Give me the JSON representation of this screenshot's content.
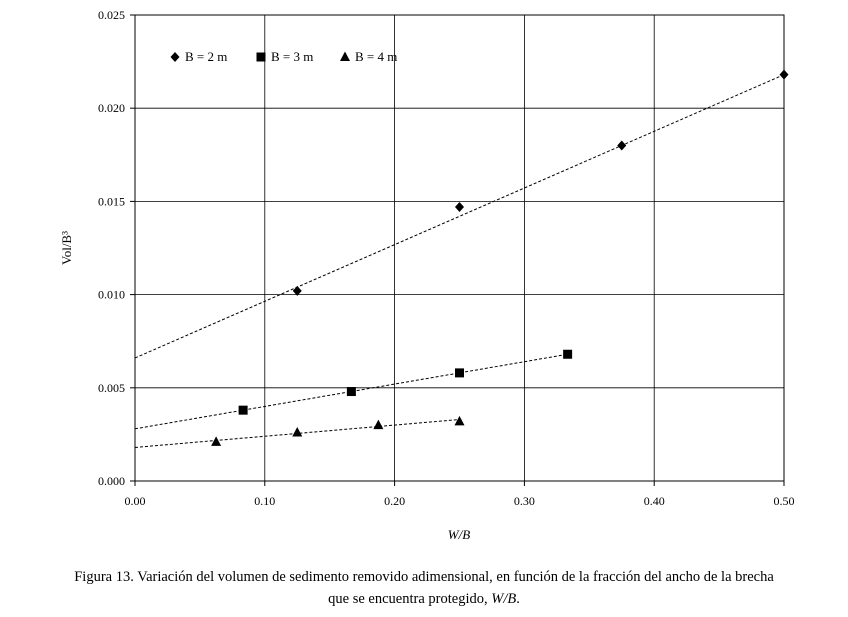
{
  "chart_data": {
    "type": "scatter",
    "xlabel": "W/B",
    "ylabel": "Vol/B³",
    "xlim": [
      0,
      0.5
    ],
    "ylim": [
      0,
      0.025
    ],
    "x_ticks": [
      "0.00",
      "0.10",
      "0.20",
      "0.30",
      "0.40",
      "0.50"
    ],
    "y_ticks": [
      "0.000",
      "0.005",
      "0.010",
      "0.015",
      "0.020",
      "0.025"
    ],
    "grid": true,
    "legend_position": "top-left",
    "series": [
      {
        "name": "B = 2 m",
        "marker": "diamond",
        "x": [
          0.125,
          0.25,
          0.375,
          0.5
        ],
        "y": [
          0.0102,
          0.0147,
          0.018,
          0.0218
        ],
        "trend": {
          "x": [
            0,
            0.5
          ],
          "y": [
            0.0066,
            0.0218
          ]
        }
      },
      {
        "name": "B = 3 m",
        "marker": "square",
        "x": [
          0.0833,
          0.1667,
          0.25,
          0.3333
        ],
        "y": [
          0.0038,
          0.0048,
          0.0058,
          0.0068
        ],
        "trend": {
          "x": [
            0,
            0.3333
          ],
          "y": [
            0.0028,
            0.0068
          ]
        }
      },
      {
        "name": "B = 4 m",
        "marker": "triangle",
        "x": [
          0.0625,
          0.125,
          0.1875,
          0.25
        ],
        "y": [
          0.0021,
          0.0026,
          0.003,
          0.0032
        ],
        "trend": {
          "x": [
            0,
            0.25
          ],
          "y": [
            0.0018,
            0.0033
          ]
        }
      }
    ]
  },
  "caption": {
    "line1": "Figura 13. Variación del volumen de sedimento removido adimensional, en función de la fracción del ancho de la brecha",
    "line2_prefix": "que se encuentra protegido, ",
    "line2_italic": "W/B",
    "line2_suffix": "."
  }
}
